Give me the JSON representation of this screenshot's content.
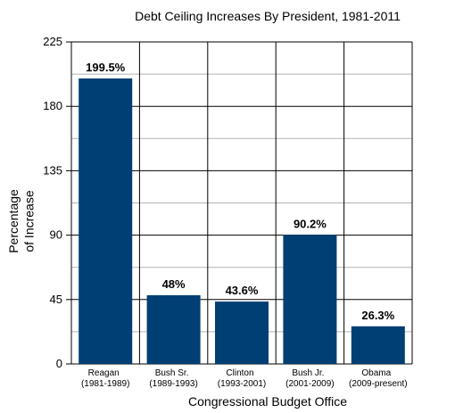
{
  "chart_data": {
    "type": "bar",
    "title": "Debt Ceiling Increases By President, 1981-2011",
    "xlabel": "Congressional Budget Office",
    "ylabel_lines": [
      "Percentage",
      "of Increase"
    ],
    "categories": [
      {
        "name": "Reagan",
        "period": "(1981-1989)"
      },
      {
        "name": "Bush Sr.",
        "period": "(1989-1993)"
      },
      {
        "name": "Clinton",
        "period": "(1993-2001)"
      },
      {
        "name": "Bush Jr.",
        "period": "(2001-2009)"
      },
      {
        "name": "Obama",
        "period": "(2009-present)"
      }
    ],
    "values": [
      199.5,
      48,
      43.6,
      90.2,
      26.3
    ],
    "data_labels": [
      "199.5%",
      "48%",
      "43.6%",
      "90.2%",
      "26.3%"
    ],
    "ylim": [
      0,
      225
    ],
    "yticks": [
      0,
      45,
      90,
      135,
      180,
      225
    ],
    "bar_color": "#003f73",
    "grid": true
  }
}
